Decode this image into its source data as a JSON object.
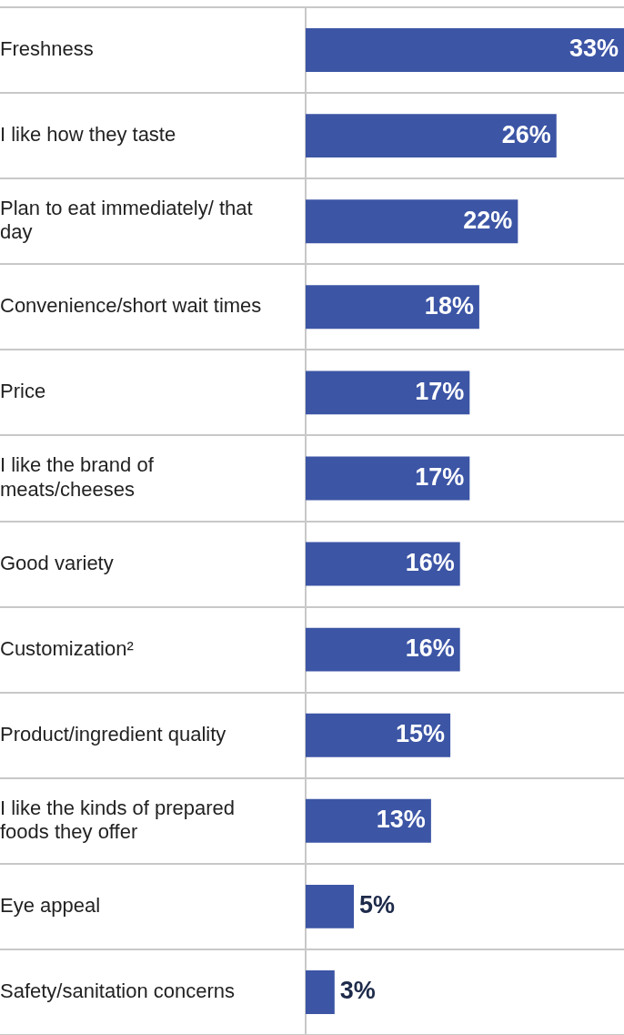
{
  "chart_data": {
    "type": "bar",
    "orientation": "horizontal",
    "categories": [
      "Freshness",
      "I like how they taste",
      "Plan to eat immediately/ that day",
      "Convenience/short wait times",
      "Price",
      "I like the brand of meats/cheeses",
      "Good variety",
      "Customization²",
      "Product/ingredient quality",
      "I like the kinds of prepared foods they offer",
      "Eye appeal",
      "Safety/sanitation concerns"
    ],
    "values": [
      33,
      26,
      22,
      18,
      17,
      17,
      16,
      16,
      15,
      13,
      5,
      3
    ],
    "value_labels": [
      "33%",
      "26%",
      "22%",
      "18%",
      "17%",
      "17%",
      "16%",
      "16%",
      "15%",
      "13%",
      "5%",
      "3%"
    ],
    "color": "#3c55a5",
    "xlim": [
      0,
      33
    ],
    "grid": "y",
    "tick_labels": "y",
    "legend": false
  }
}
